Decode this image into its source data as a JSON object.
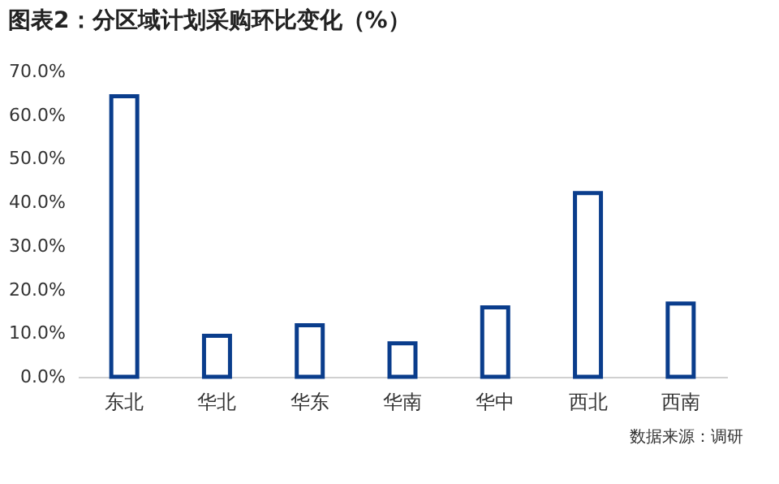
{
  "chart_data": {
    "type": "bar",
    "title": "图表2：分区域计划采购环比变化（%）",
    "categories": [
      "东北",
      "华北",
      "华东",
      "华南",
      "华中",
      "西北",
      "西南"
    ],
    "values": [
      64.3,
      9.4,
      11.8,
      7.7,
      15.9,
      42.1,
      16.8
    ],
    "color": "#0a3d8c",
    "ylim": [
      0,
      70
    ],
    "yticks": [
      {
        "value": 0,
        "label": "0.0%"
      },
      {
        "value": 10,
        "label": "10.0%"
      },
      {
        "value": 20,
        "label": "20.0%"
      },
      {
        "value": 30,
        "label": "30.0%"
      },
      {
        "value": 40,
        "label": "40.0%"
      },
      {
        "value": 50,
        "label": "50.0%"
      },
      {
        "value": 60,
        "label": "60.0%"
      },
      {
        "value": 70,
        "label": "70.0%"
      }
    ],
    "grid": false,
    "annotations": [
      "数据来源：调研"
    ]
  }
}
